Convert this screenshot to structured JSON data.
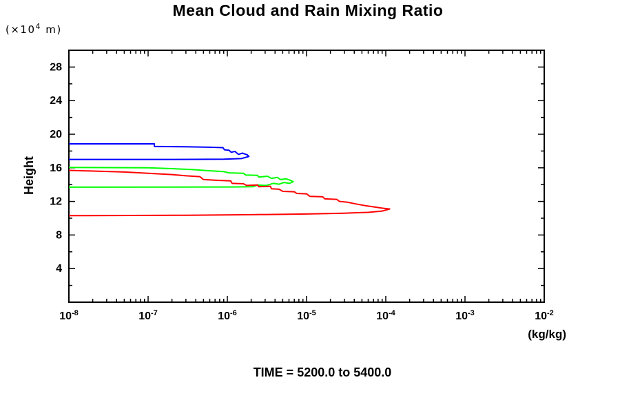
{
  "title": "Mean Cloud and Rain Mixing Ratio",
  "footer": "TIME = 5200.0 to 5400.0",
  "y_axis": {
    "unit_prefix": "(×10",
    "unit_exponent": "4",
    "unit_suffix": " m)",
    "label": "Height",
    "range": [
      0,
      30
    ],
    "major_ticks": [
      4,
      8,
      12,
      16,
      20,
      24,
      28
    ],
    "minor_step": 2
  },
  "x_axis": {
    "unit_label": "(kg/kg)",
    "scale": "log10",
    "mantissa": "10",
    "decade_exponents": [
      -8,
      -7,
      -6,
      -5,
      -4,
      -3,
      -2
    ],
    "decade_labels": [
      "10-8",
      "10-7",
      "10-6",
      "10-5",
      "10-4",
      "10-3",
      "10-2"
    ]
  },
  "colors": {
    "axis": "#000000",
    "blue_series": "#0000ff",
    "green_series": "#00ff00",
    "red_series": "#ff0000"
  },
  "chart_data": {
    "type": "line",
    "title": "Mean Cloud and Rain Mixing Ratio",
    "xlabel": "(kg/kg)",
    "ylabel": "Height (×10^4 m)",
    "x_scale": "log",
    "xlim": [
      1e-08,
      0.01
    ],
    "ylim": [
      0,
      30
    ],
    "grid": false,
    "legend": "none",
    "annotation": "TIME = 5200.0 to 5400.0",
    "series": [
      {
        "name": "blue-profile",
        "color": "#0000ff",
        "points": [
          [
            1e-08,
            18.85
          ],
          [
            1.2e-07,
            18.85
          ],
          [
            1.2e-07,
            18.55
          ],
          [
            3e-07,
            18.5
          ],
          [
            6e-07,
            18.45
          ],
          [
            8.8e-07,
            18.4
          ],
          [
            9.2e-07,
            18.15
          ],
          [
            1.05e-06,
            18.1
          ],
          [
            1.12e-06,
            17.85
          ],
          [
            1.25e-06,
            17.95
          ],
          [
            1.38e-06,
            17.6
          ],
          [
            1.55e-06,
            17.75
          ],
          [
            1.78e-06,
            17.55
          ],
          [
            1.87e-06,
            17.35
          ],
          [
            1.5e-06,
            17.1
          ],
          [
            9e-07,
            17.03
          ],
          [
            2e-07,
            17.0
          ],
          [
            1e-08,
            17.0
          ]
        ]
      },
      {
        "name": "green-profile",
        "color": "#00ff00",
        "points": [
          [
            1e-08,
            16.05
          ],
          [
            1e-07,
            16.0
          ],
          [
            2e-07,
            15.9
          ],
          [
            3.5e-07,
            15.8
          ],
          [
            6e-07,
            15.65
          ],
          [
            9e-07,
            15.55
          ],
          [
            1.05e-06,
            15.4
          ],
          [
            1.6e-06,
            15.35
          ],
          [
            1.7e-06,
            15.15
          ],
          [
            2.4e-06,
            15.1
          ],
          [
            2.5e-06,
            14.9
          ],
          [
            3.2e-06,
            15.0
          ],
          [
            3.6e-06,
            14.75
          ],
          [
            4.3e-06,
            14.85
          ],
          [
            4.7e-06,
            14.6
          ],
          [
            5.5e-06,
            14.7
          ],
          [
            6.3e-06,
            14.5
          ],
          [
            6.8e-06,
            14.35
          ],
          [
            6.1e-06,
            14.15
          ],
          [
            5.2e-06,
            14.25
          ],
          [
            4.5e-06,
            14.05
          ],
          [
            3.8e-06,
            14.15
          ],
          [
            3.1e-06,
            13.9
          ],
          [
            2.4e-06,
            13.95
          ],
          [
            2.1e-06,
            13.75
          ],
          [
            1.2e-06,
            13.72
          ],
          [
            1e-08,
            13.7
          ]
        ]
      },
      {
        "name": "red-profile",
        "color": "#ff0000",
        "points": [
          [
            1e-08,
            15.7
          ],
          [
            5e-08,
            15.5
          ],
          [
            1e-07,
            15.35
          ],
          [
            2e-07,
            15.2
          ],
          [
            3e-07,
            15.05
          ],
          [
            4.5e-07,
            14.95
          ],
          [
            5e-07,
            14.6
          ],
          [
            8e-07,
            14.5
          ],
          [
            1.1e-06,
            14.45
          ],
          [
            1.15e-06,
            14.15
          ],
          [
            1.6e-06,
            14.1
          ],
          [
            1.75e-06,
            13.9
          ],
          [
            2.4e-06,
            13.95
          ],
          [
            2.5e-06,
            13.75
          ],
          [
            3.5e-06,
            13.8
          ],
          [
            3.6e-06,
            13.5
          ],
          [
            4.5e-06,
            13.45
          ],
          [
            5e-06,
            13.2
          ],
          [
            7e-06,
            13.15
          ],
          [
            7.5e-06,
            12.95
          ],
          [
            1e-05,
            12.9
          ],
          [
            1.1e-05,
            12.6
          ],
          [
            1.6e-05,
            12.55
          ],
          [
            1.7e-05,
            12.3
          ],
          [
            2.4e-05,
            12.25
          ],
          [
            2.6e-05,
            12.0
          ],
          [
            3.3e-05,
            11.9
          ],
          [
            4.2e-05,
            11.7
          ],
          [
            5.5e-05,
            11.5
          ],
          [
            7e-05,
            11.35
          ],
          [
            9e-05,
            11.2
          ],
          [
            0.000112,
            11.1
          ],
          [
            9e-05,
            10.85
          ],
          [
            6e-05,
            10.7
          ],
          [
            3e-05,
            10.6
          ],
          [
            1e-05,
            10.5
          ],
          [
            2e-06,
            10.42
          ],
          [
            3e-07,
            10.35
          ],
          [
            1e-08,
            10.3
          ]
        ]
      }
    ]
  }
}
